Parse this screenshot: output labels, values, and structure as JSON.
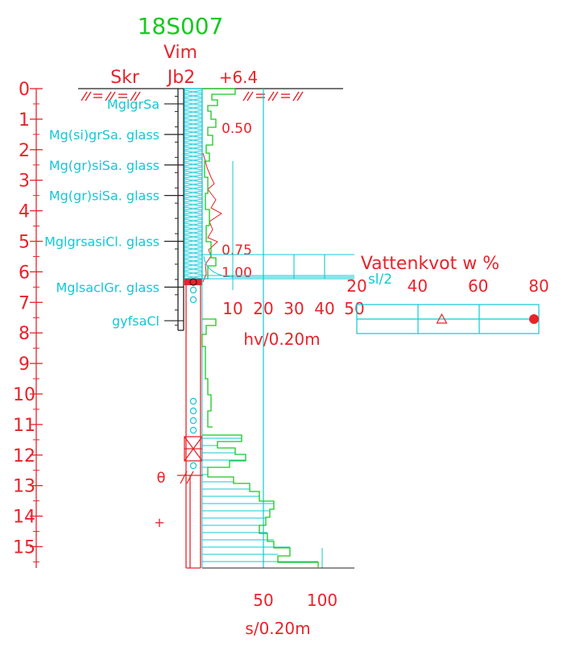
{
  "header": {
    "borehole_id": "18S007",
    "method": "Vim",
    "col_skr": "Skr",
    "col_jb2": "Jb2",
    "elevation": "+6.4"
  },
  "depth_axis": {
    "labels": [
      "0",
      "1",
      "2",
      "3",
      "4",
      "5",
      "6",
      "7",
      "8",
      "9",
      "10",
      "11",
      "12",
      "13",
      "14",
      "15"
    ]
  },
  "soil_layers": [
    {
      "label": "MglgrSa",
      "depth": 0.5
    },
    {
      "label": "Mg(si)grSa. glass",
      "depth": 1.5
    },
    {
      "label": "Mg(gr)siSa. glass",
      "depth": 2.5
    },
    {
      "label": "Mg(gr)siSa. glass",
      "depth": 3.5
    },
    {
      "label": "MglgrsasiCl. glass",
      "depth": 5.0
    },
    {
      "label": "MglsaclGr. glass",
      "depth": 6.5
    },
    {
      "label": "gyfsaCl",
      "depth": 7.6
    }
  ],
  "hv_chart": {
    "tick_labels": [
      "10",
      "20",
      "30",
      "40",
      "50"
    ],
    "axis_label": "hv/0.20m",
    "annotation_top": "0.50",
    "annotation_mid": "0.75",
    "annotation_low": "1.00"
  },
  "s_chart": {
    "tick_labels": [
      "50",
      "100"
    ],
    "axis_label": "s/0.20m"
  },
  "water_content": {
    "title_text": "Vattenkvot w %",
    "sl_label": "sl/2",
    "tick_labels": [
      "20",
      "40",
      "60",
      "80"
    ],
    "points": [
      {
        "marker": "triangle",
        "value": 48
      },
      {
        "marker": "dot",
        "value": 80
      }
    ]
  },
  "symbols": {
    "theta": "θ",
    "plus": "+"
  },
  "colors": {
    "red": "#e8232a",
    "green": "#19c81e",
    "cyan": "#12c8d6",
    "black": "#222222",
    "background": "#ffffff"
  }
}
